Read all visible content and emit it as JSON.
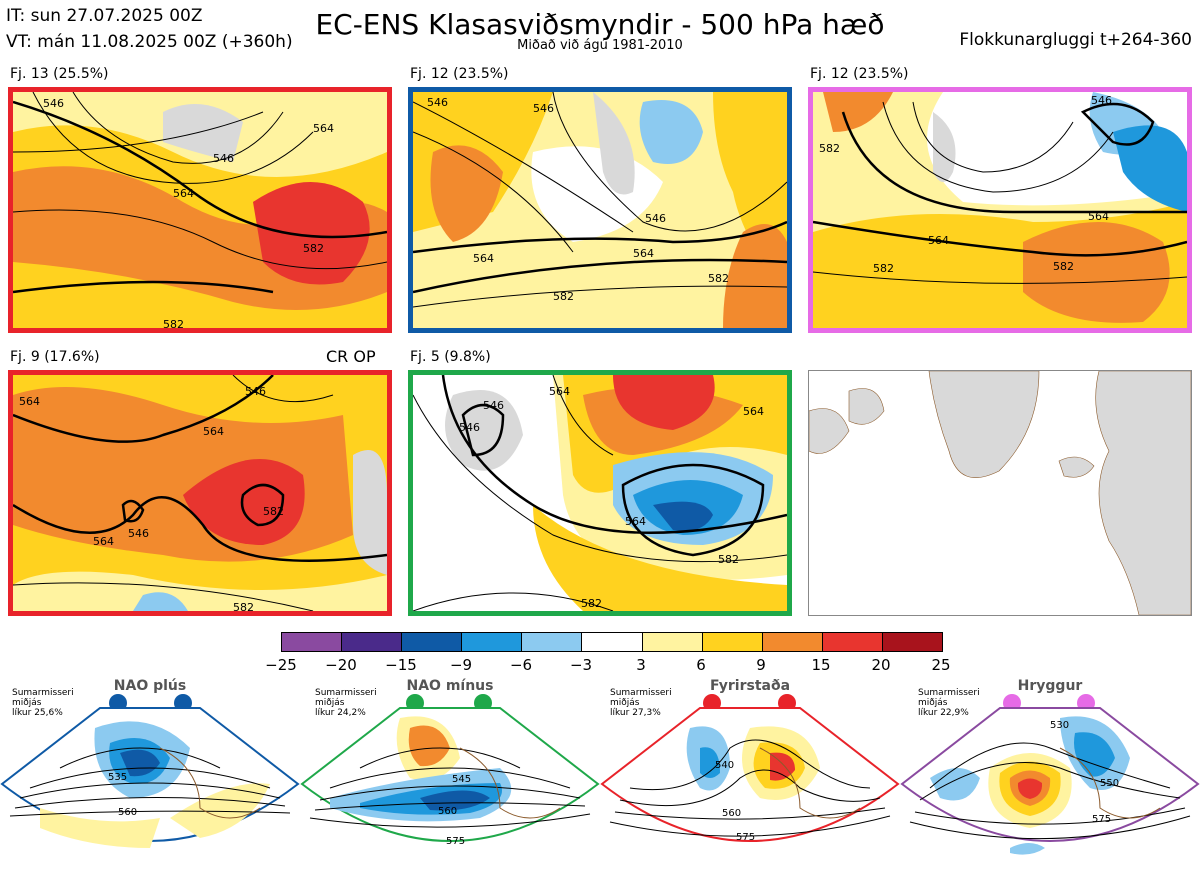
{
  "header": {
    "init_time": "IT: sun 27.07.2025 00Z",
    "valid_time": "VT: mán 11.08.2025 00Z  (+360h)",
    "title": "EC-ENS Klasasviðsmyndir - 500 hPa hæð",
    "subtitle": "Miðað við ágú 1981-2010",
    "window": "Flokkunargluggi t+264-360"
  },
  "panels": [
    {
      "label": "Fj. 13 (25.5%)",
      "border_color": "#e8232a",
      "contour_labels": [
        "546",
        "546",
        "564",
        "564",
        "582",
        "582"
      ]
    },
    {
      "label": "Fj. 12 (23.5%)",
      "border_color": "#0f5aa6",
      "contour_labels": [
        "546",
        "546",
        "546",
        "564",
        "564",
        "582",
        "582"
      ]
    },
    {
      "label": "Fj. 12 (23.5%)",
      "border_color": "#e66be6",
      "contour_labels": [
        "546",
        "564",
        "564",
        "582",
        "582",
        "582"
      ]
    },
    {
      "label": "Fj. 9 (17.6%)",
      "border_color": "#e8232a",
      "contour_labels": [
        "564",
        "564",
        "546",
        "582",
        "564",
        "546",
        "582"
      ]
    },
    {
      "label": "Fj. 5 (9.8%)",
      "border_color": "#1fa84a",
      "contour_labels": [
        "564",
        "546",
        "546",
        "564",
        "564",
        "582",
        "582"
      ]
    }
  ],
  "crop_label": "CR OP",
  "colorbar": {
    "ticks": [
      "−25",
      "−20",
      "−15",
      "−9",
      "−6",
      "−3",
      "3",
      "6",
      "9",
      "15",
      "20",
      "25"
    ],
    "colors": [
      "#8a4aa0",
      "#4a2a8a",
      "#0f5aa6",
      "#1f98dc",
      "#8ccaf0",
      "#ffffff",
      "#fff3a0",
      "#ffd21f",
      "#f28a2e",
      "#e8352f",
      "#a8131c"
    ]
  },
  "regimes": [
    {
      "title": "NAO plús",
      "note": [
        "Sumarmisseri",
        "miðjás",
        "líkur 25,6%"
      ],
      "color": "#0f5aa6",
      "contour_labels": [
        "535",
        "560"
      ]
    },
    {
      "title": "NAO mínus",
      "note": [
        "Sumarmisseri",
        "miðjás",
        "líkur 24,2%"
      ],
      "color": "#1fa84a",
      "contour_labels": [
        "545",
        "560",
        "575"
      ]
    },
    {
      "title": "Fyrirstaða",
      "note": [
        "Sumarmisseri",
        "miðjás",
        "líkur 27,3%"
      ],
      "color": "#e8232a",
      "contour_labels": [
        "540",
        "560",
        "575"
      ]
    },
    {
      "title": "Hryggur",
      "note": [
        "Sumarmisseri",
        "miðjás",
        "líkur 22,9%"
      ],
      "color": "#e66be6",
      "contour_labels": [
        "530",
        "550",
        "575"
      ]
    }
  ]
}
